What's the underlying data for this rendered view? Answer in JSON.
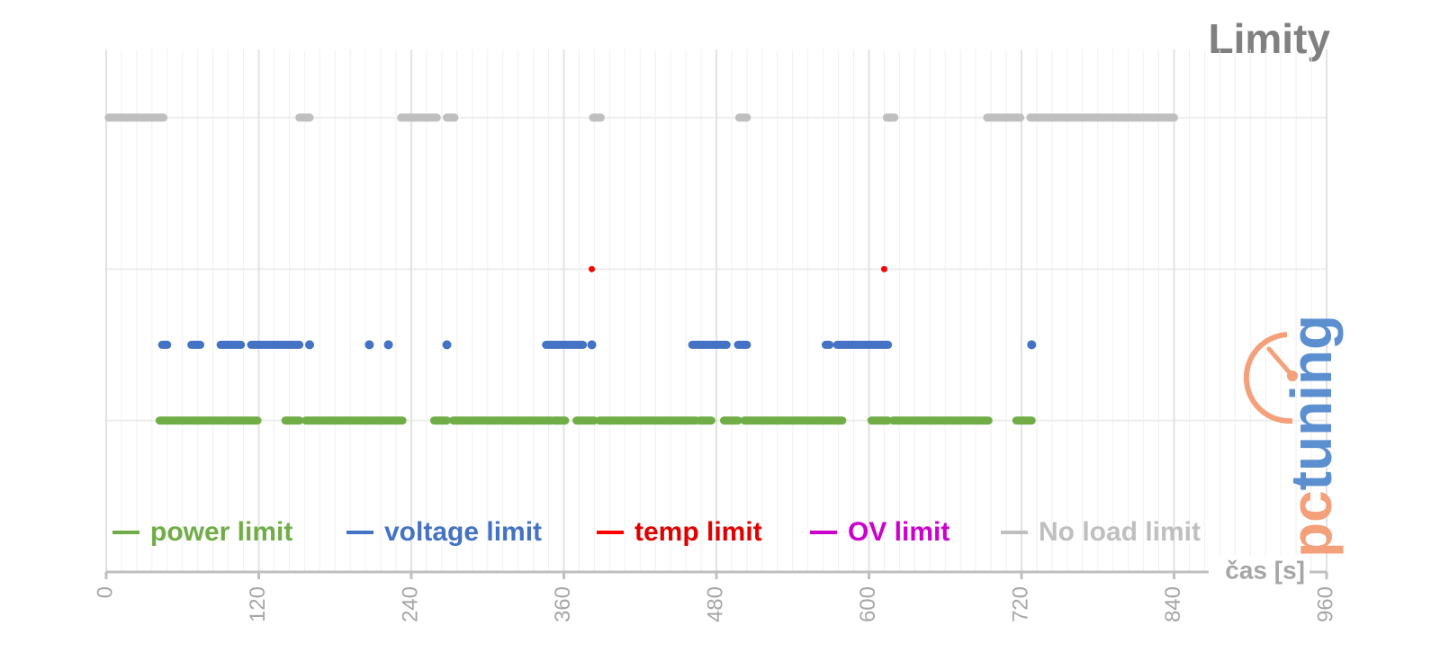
{
  "chart_data": {
    "type": "timeline",
    "title": "Limity",
    "x_label": "čas [s]",
    "watermark": [
      "pc",
      "tuning"
    ],
    "xlim": [
      0,
      960
    ],
    "xticks": [
      0,
      120,
      240,
      360,
      480,
      600,
      720,
      840,
      960
    ],
    "ylim": [
      0,
      3.45
    ],
    "yticks": [
      0,
      1,
      2,
      3
    ],
    "grid": true,
    "legend": "bottom-left",
    "series": [
      {
        "name": "power limit",
        "color": "#70ad47",
        "value": 1,
        "intervals": [
          [
            42,
            119
          ],
          [
            141,
            152
          ],
          [
            157,
            233
          ],
          [
            258,
            268
          ],
          [
            273,
            350
          ],
          [
            352,
            361
          ],
          [
            370,
            384
          ],
          [
            388,
            464
          ],
          [
            467,
            476
          ],
          [
            486,
            497
          ],
          [
            502,
            579
          ],
          [
            602,
            615
          ],
          [
            619,
            694
          ],
          [
            716,
            728
          ]
        ]
      },
      {
        "name": "voltage limit",
        "color": "#4472c4",
        "value": 1.5,
        "intervals": [
          [
            44,
            48
          ],
          [
            67,
            74
          ],
          [
            90,
            106
          ],
          [
            114,
            152
          ],
          [
            160,
            160
          ],
          [
            207,
            207
          ],
          [
            222,
            222
          ],
          [
            268,
            268
          ],
          [
            346,
            375
          ],
          [
            382,
            382
          ],
          [
            461,
            488
          ],
          [
            497,
            504
          ],
          [
            566,
            569
          ],
          [
            575,
            615
          ],
          [
            728,
            728
          ]
        ]
      },
      {
        "name": "temp limit",
        "color": "#ff0000",
        "value": 2,
        "intervals": [
          [
            382,
            382
          ],
          [
            612,
            612
          ]
        ]
      },
      {
        "name": "OV limit",
        "color": "#cc00cc",
        "value": 2.5,
        "intervals": []
      },
      {
        "name": "No load limit",
        "color": "#bfbfbf",
        "value": 3,
        "intervals": [
          [
            2,
            45
          ],
          [
            152,
            160
          ],
          [
            232,
            260
          ],
          [
            268,
            274
          ],
          [
            383,
            389
          ],
          [
            498,
            504
          ],
          [
            614,
            620
          ],
          [
            693,
            719
          ],
          [
            727,
            840
          ]
        ]
      }
    ]
  }
}
